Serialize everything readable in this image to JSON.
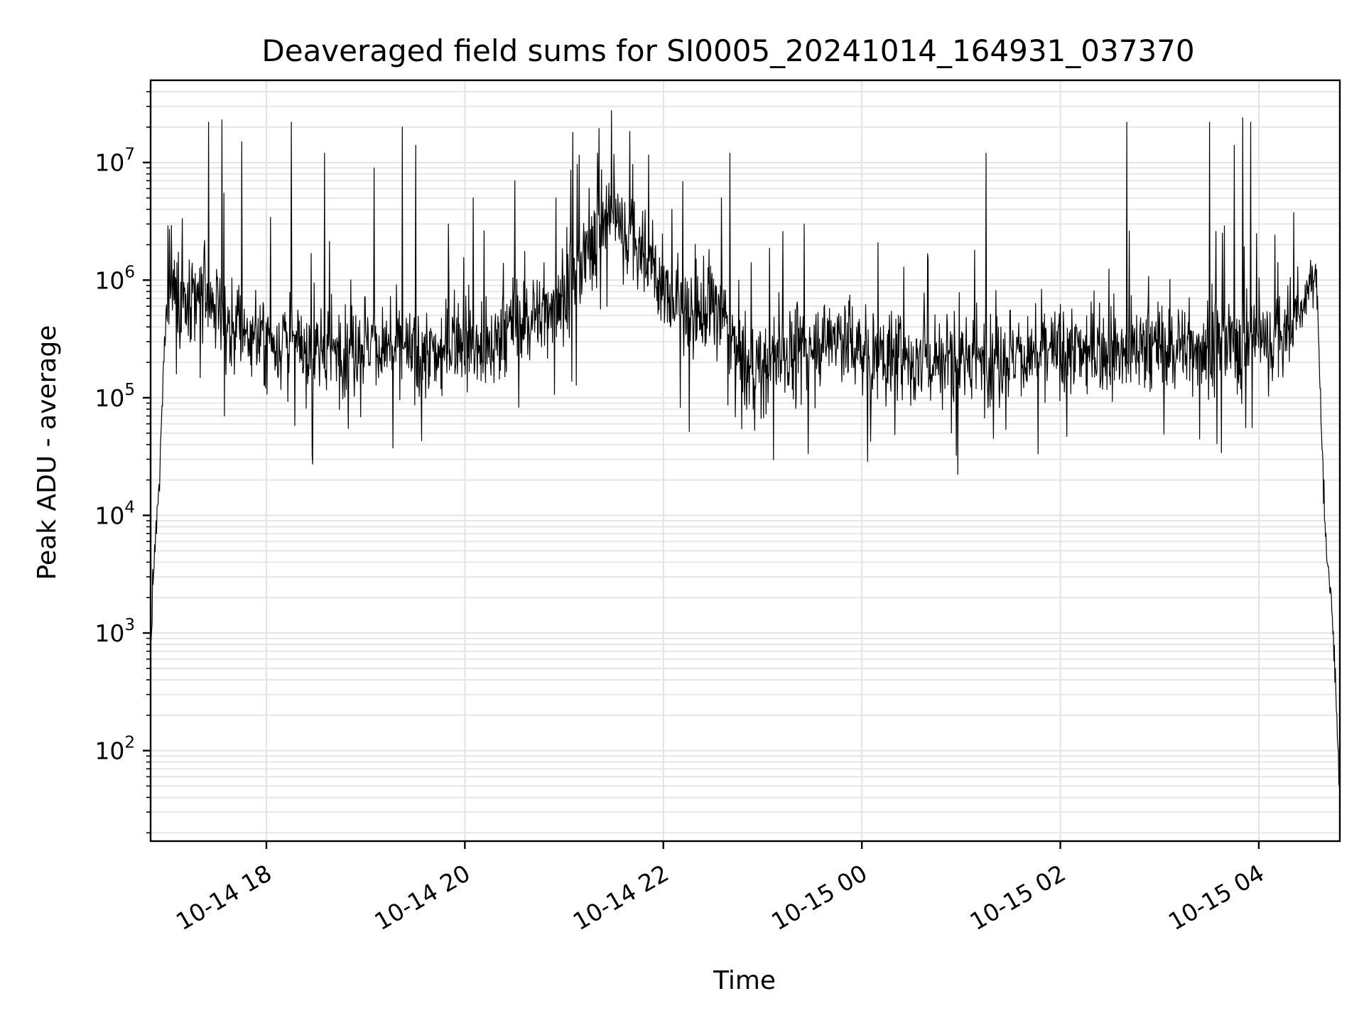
{
  "chart_data": {
    "type": "line",
    "title": "Deaveraged field sums for SI0005_20241014_164931_037370",
    "xlabel": "Time",
    "ylabel": "Peak ADU - average",
    "yscale": "log",
    "xlim": [
      "2024-10-14 16:50",
      "2024-10-15 04:49"
    ],
    "ylim": [
      17,
      50000000
    ],
    "grid": true,
    "legend": "none",
    "line_color": "#000000",
    "x_ticks": [
      {
        "value": "2024-10-14 18:00",
        "label": "10-14 18"
      },
      {
        "value": "2024-10-14 20:00",
        "label": "10-14 20"
      },
      {
        "value": "2024-10-14 22:00",
        "label": "10-14 22"
      },
      {
        "value": "2024-10-15 00:00",
        "label": "10-15 00"
      },
      {
        "value": "2024-10-15 02:00",
        "label": "10-15 02"
      },
      {
        "value": "2024-10-15 04:00",
        "label": "10-15 04"
      }
    ],
    "y_ticks": [
      {
        "value": 100,
        "base": "10",
        "exp": "2"
      },
      {
        "value": 1000,
        "base": "10",
        "exp": "3"
      },
      {
        "value": 10000,
        "base": "10",
        "exp": "4"
      },
      {
        "value": 100000,
        "base": "10",
        "exp": "5"
      },
      {
        "value": 1000000,
        "base": "10",
        "exp": "6"
      },
      {
        "value": 10000000,
        "base": "10",
        "exp": "7"
      }
    ],
    "series": [
      {
        "x": [
          "2024-10-14 16:50",
          "2024-10-14 16:52",
          "2024-10-14 16:55",
          "2024-10-14 16:58",
          "2024-10-14 17:00",
          "2024-10-14 17:05",
          "2024-10-14 17:10",
          "2024-10-14 17:15",
          "2024-10-14 17:20",
          "2024-10-14 17:25",
          "2024-10-14 17:30",
          "2024-10-14 17:35",
          "2024-10-14 17:40",
          "2024-10-14 17:45",
          "2024-10-14 17:50",
          "2024-10-14 18:00",
          "2024-10-14 18:15",
          "2024-10-14 18:30",
          "2024-10-14 18:45",
          "2024-10-14 19:00",
          "2024-10-14 19:15",
          "2024-10-14 19:30",
          "2024-10-14 19:45",
          "2024-10-14 19:55",
          "2024-10-14 20:15",
          "2024-10-14 20:30",
          "2024-10-14 20:45",
          "2024-10-14 21:00",
          "2024-10-14 21:10",
          "2024-10-14 21:20",
          "2024-10-14 21:30",
          "2024-10-14 21:45",
          "2024-10-14 22:00",
          "2024-10-14 22:15",
          "2024-10-14 22:30",
          "2024-10-14 22:40",
          "2024-10-14 22:50",
          "2024-10-14 23:00",
          "2024-10-14 23:15",
          "2024-10-14 23:30",
          "2024-10-14 23:45",
          "2024-10-15 00:00",
          "2024-10-15 00:30",
          "2024-10-15 01:00",
          "2024-10-15 01:30",
          "2024-10-15 02:00",
          "2024-10-15 02:30",
          "2024-10-15 03:00",
          "2024-10-15 03:30",
          "2024-10-15 03:50",
          "2024-10-15 04:10",
          "2024-10-15 04:25",
          "2024-10-15 04:30",
          "2024-10-15 04:35",
          "2024-10-15 04:40",
          "2024-10-15 04:45",
          "2024-10-15 04:49"
        ],
        "y": [
          700,
          4000,
          15000,
          200000,
          700000,
          900000,
          600000,
          500000,
          800000,
          700000,
          600000,
          450000,
          400000,
          450000,
          350000,
          300000,
          300000,
          250000,
          260000,
          300000,
          270000,
          220000,
          230000,
          350000,
          250000,
          450000,
          500000,
          800000,
          1200000,
          3000000,
          3500000,
          2000000,
          800000,
          500000,
          600000,
          400000,
          150000,
          180000,
          250000,
          280000,
          350000,
          250000,
          200000,
          210000,
          230000,
          240000,
          260000,
          270000,
          280000,
          300000,
          320000,
          500000,
          900000,
          1000000,
          8000,
          1000,
          50
        ],
        "spikes": [
          [
            "2024-10-14 17:25",
            22000000
          ],
          [
            "2024-10-14 17:33",
            23000000
          ],
          [
            "2024-10-14 17:45",
            15000000
          ],
          [
            "2024-10-14 18:15",
            22000000
          ],
          [
            "2024-10-14 18:35",
            12000000
          ],
          [
            "2024-10-14 19:05",
            9000000
          ],
          [
            "2024-10-14 19:22",
            20000000
          ],
          [
            "2024-10-14 19:30",
            14000000
          ],
          [
            "2024-10-14 19:50",
            3000000
          ],
          [
            "2024-10-14 20:05",
            5000000
          ],
          [
            "2024-10-14 20:30",
            7000000
          ],
          [
            "2024-10-14 20:55",
            5000000
          ],
          [
            "2024-10-14 21:05",
            18000000
          ],
          [
            "2024-10-14 21:20",
            12000000
          ],
          [
            "2024-10-14 22:05",
            4000000
          ],
          [
            "2024-10-14 22:35",
            5000000
          ],
          [
            "2024-10-14 22:40",
            12000000
          ],
          [
            "2024-10-14 23:25",
            3000000
          ],
          [
            "2024-10-15 00:40",
            1500000
          ],
          [
            "2024-10-15 01:15",
            12000000
          ],
          [
            "2024-10-15 02:40",
            22000000
          ],
          [
            "2024-10-15 03:30",
            22000000
          ],
          [
            "2024-10-15 03:45",
            14000000
          ],
          [
            "2024-10-15 03:50",
            24000000
          ],
          [
            "2024-10-15 03:55",
            22000000
          ]
        ]
      }
    ]
  }
}
